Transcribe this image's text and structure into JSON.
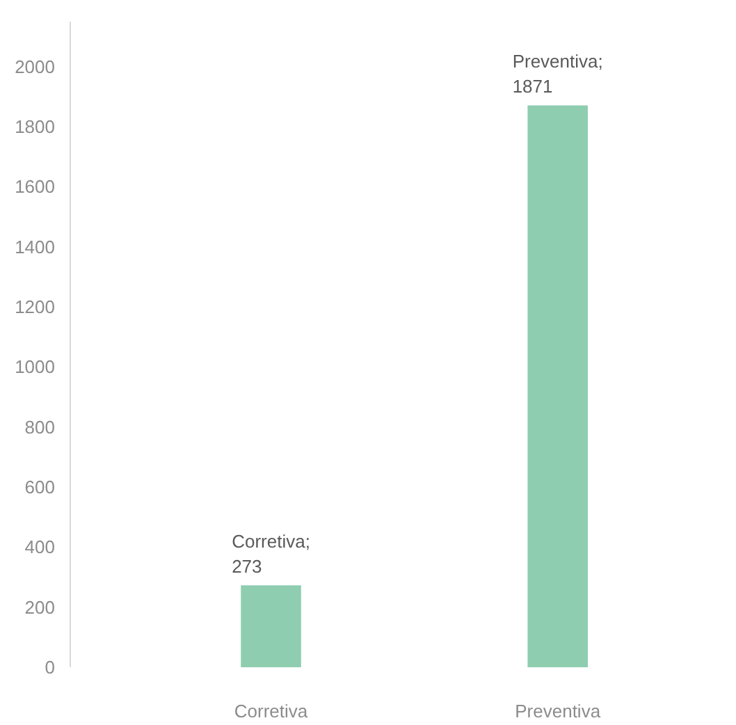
{
  "chart_data": {
    "type": "bar",
    "categories": [
      "Corretiva",
      "Preventiva"
    ],
    "values": [
      273,
      1871
    ],
    "color": "#8fcdb0",
    "value_labels": [
      "Corretiva;\n273",
      "Preventiva;\n1871"
    ],
    "ylim": [
      0,
      2150
    ],
    "yticks": [
      0,
      200,
      400,
      600,
      800,
      1000,
      1200,
      1400,
      1600,
      1800,
      2000
    ],
    "grid": false
  }
}
